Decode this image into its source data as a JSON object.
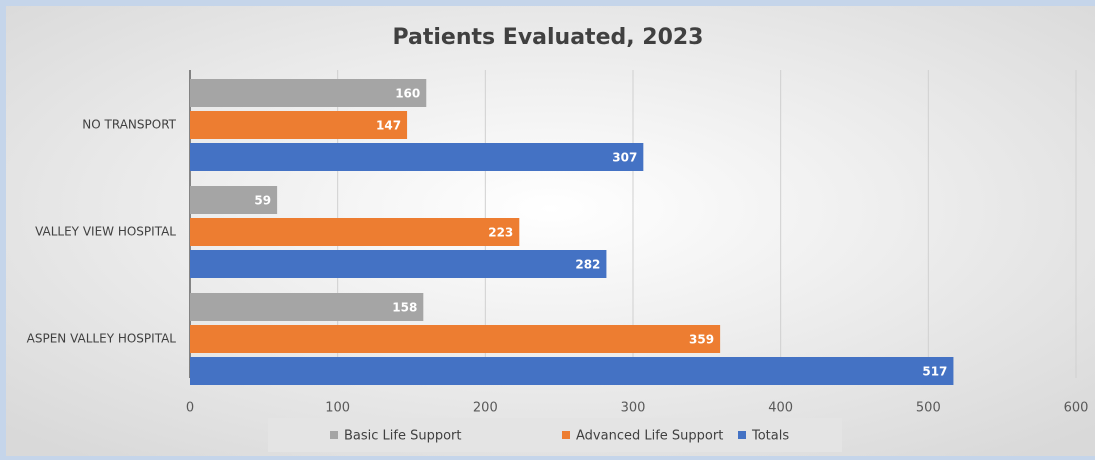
{
  "chart_data": {
    "type": "bar",
    "orientation": "horizontal",
    "title": "Patients Evaluated, 2023",
    "categories": [
      "NO TRANSPORT",
      "VALLEY VIEW HOSPITAL",
      "ASPEN VALLEY HOSPITAL"
    ],
    "series": [
      {
        "name": "Basic Life Support",
        "color": "#a5a5a5",
        "values": [
          160,
          59,
          158
        ]
      },
      {
        "name": "Advanced Life Support",
        "color": "#ed7d31",
        "values": [
          147,
          223,
          359
        ]
      },
      {
        "name": "Totals",
        "color": "#4472c4",
        "values": [
          307,
          282,
          517
        ]
      }
    ],
    "xlim": [
      0,
      600
    ],
    "xticks": [
      0,
      100,
      200,
      300,
      400,
      500,
      600
    ],
    "grid": true,
    "legend": "bottom"
  }
}
